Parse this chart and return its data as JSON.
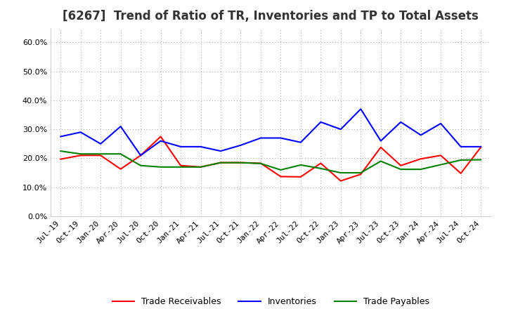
{
  "title": "[6267]  Trend of Ratio of TR, Inventories and TP to Total Assets",
  "x_labels": [
    "Jul-19",
    "Oct-19",
    "Jan-20",
    "Apr-20",
    "Jul-20",
    "Oct-20",
    "Jan-21",
    "Apr-21",
    "Jul-21",
    "Oct-21",
    "Jan-22",
    "Apr-22",
    "Jul-22",
    "Oct-22",
    "Jan-23",
    "Apr-23",
    "Jul-23",
    "Oct-23",
    "Jan-24",
    "Apr-24",
    "Jul-24",
    "Oct-24"
  ],
  "trade_receivables": [
    0.197,
    0.21,
    0.21,
    0.163,
    0.21,
    0.275,
    0.175,
    0.17,
    0.185,
    0.185,
    0.183,
    0.137,
    0.136,
    0.183,
    0.122,
    0.145,
    0.238,
    0.175,
    0.198,
    0.21,
    0.148,
    0.238
  ],
  "inventories": [
    0.275,
    0.29,
    0.25,
    0.31,
    0.21,
    0.26,
    0.24,
    0.24,
    0.225,
    0.245,
    0.27,
    0.27,
    0.255,
    0.325,
    0.3,
    0.37,
    0.26,
    0.325,
    0.28,
    0.32,
    0.24,
    0.24
  ],
  "trade_payables": [
    0.225,
    0.215,
    0.215,
    0.215,
    0.175,
    0.17,
    0.17,
    0.17,
    0.185,
    0.185,
    0.182,
    0.16,
    0.177,
    0.165,
    0.15,
    0.15,
    0.19,
    0.162,
    0.162,
    0.178,
    0.194,
    0.195
  ],
  "tr_color": "#FF0000",
  "inv_color": "#0000FF",
  "tp_color": "#008000",
  "ylim": [
    0.0,
    0.65
  ],
  "yticks": [
    0.0,
    0.1,
    0.2,
    0.3,
    0.4,
    0.5,
    0.6
  ],
  "background_color": "#FFFFFF",
  "plot_bg_color": "#FFFFFF",
  "grid_color": "#999999",
  "title_fontsize": 12,
  "tick_fontsize": 8,
  "legend_labels": [
    "Trade Receivables",
    "Inventories",
    "Trade Payables"
  ],
  "line_width": 1.5
}
